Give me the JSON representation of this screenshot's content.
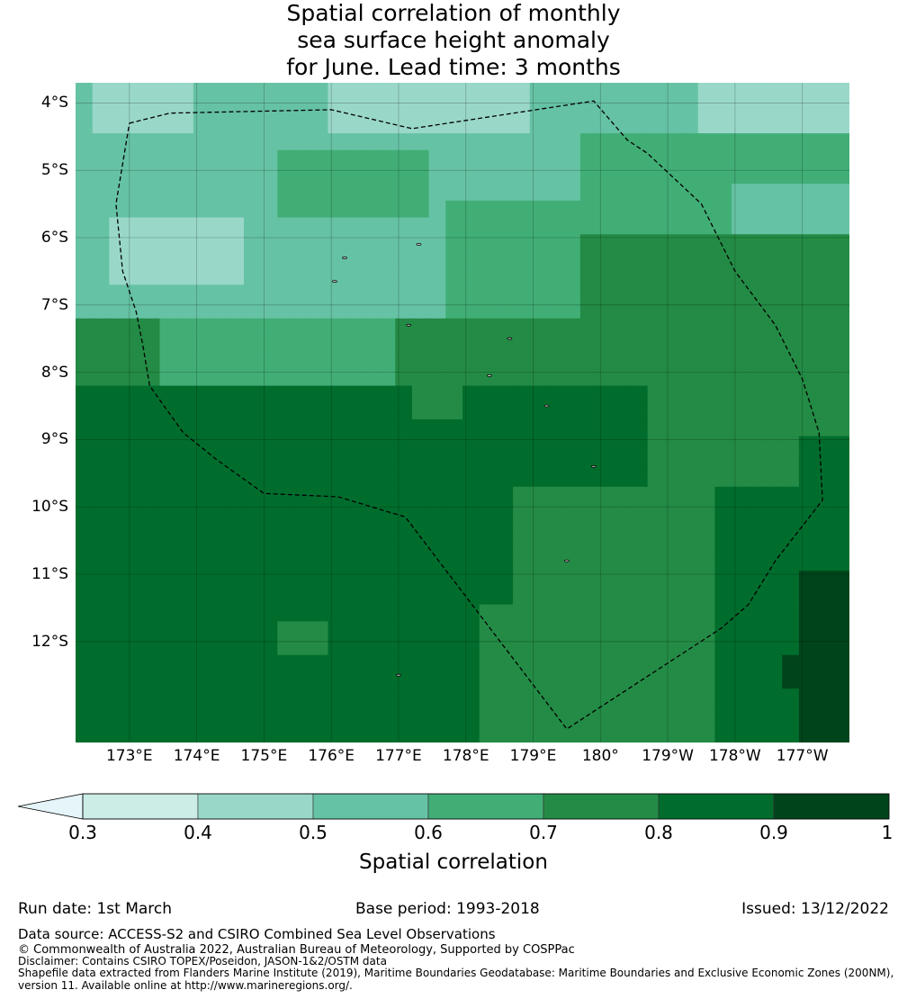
{
  "title": {
    "line1": "Spatial correlation of monthly",
    "line2": "sea surface height anomaly",
    "line3": "for June. Lead time: 3 months"
  },
  "map": {
    "lon_range": [
      172.2,
      183.7
    ],
    "lat_range": [
      -13.5,
      -3.7
    ],
    "lat_ticks": [
      {
        "value": -4,
        "label": "4°S"
      },
      {
        "value": -5,
        "label": "5°S"
      },
      {
        "value": -6,
        "label": "6°S"
      },
      {
        "value": -7,
        "label": "7°S"
      },
      {
        "value": -8,
        "label": "8°S"
      },
      {
        "value": -9,
        "label": "9°S"
      },
      {
        "value": -10,
        "label": "10°S"
      },
      {
        "value": -11,
        "label": "11°S"
      },
      {
        "value": -12,
        "label": "12°S"
      }
    ],
    "lon_ticks": [
      {
        "value": 173,
        "label": "173°E"
      },
      {
        "value": 174,
        "label": "174°E"
      },
      {
        "value": 175,
        "label": "175°E"
      },
      {
        "value": 176,
        "label": "176°E"
      },
      {
        "value": 177,
        "label": "177°E"
      },
      {
        "value": 178,
        "label": "178°E"
      },
      {
        "value": 179,
        "label": "179°E"
      },
      {
        "value": 180,
        "label": "180°"
      },
      {
        "value": 181,
        "label": "179°W"
      },
      {
        "value": 182,
        "label": "178°W"
      },
      {
        "value": 183,
        "label": "177°W"
      }
    ],
    "grid": true,
    "eez_boundary": [
      [
        173.0,
        -4.3
      ],
      [
        173.6,
        -4.15
      ],
      [
        176.0,
        -4.1
      ],
      [
        177.2,
        -4.38
      ],
      [
        179.9,
        -3.97
      ],
      [
        180.4,
        -4.55
      ],
      [
        180.7,
        -4.75
      ],
      [
        181.5,
        -5.5
      ],
      [
        182.0,
        -6.5
      ],
      [
        182.6,
        -7.3
      ],
      [
        183.0,
        -8.1
      ],
      [
        183.25,
        -8.9
      ],
      [
        183.3,
        -9.9
      ],
      [
        182.6,
        -10.8
      ],
      [
        182.2,
        -11.45
      ],
      [
        181.8,
        -11.8
      ],
      [
        179.5,
        -13.3
      ],
      [
        177.1,
        -10.15
      ],
      [
        176.1,
        -9.85
      ],
      [
        175.0,
        -9.8
      ],
      [
        174.3,
        -9.3
      ],
      [
        173.8,
        -8.9
      ],
      [
        173.3,
        -8.2
      ],
      [
        173.2,
        -7.6
      ],
      [
        173.1,
        -7.1
      ],
      [
        172.9,
        -6.5
      ],
      [
        172.8,
        -5.5
      ],
      [
        173.0,
        -4.3
      ]
    ],
    "correlation_bands_note": ""
  },
  "colorbar": {
    "label": "Spatial correlation",
    "ticks": [
      "0.3",
      "0.4",
      "0.5",
      "0.6",
      "0.7",
      "0.8",
      "0.9",
      "1"
    ],
    "bins": [
      {
        "min": 0.3,
        "max": 0.4,
        "color": "#ccece6"
      },
      {
        "min": 0.4,
        "max": 0.5,
        "color": "#99d8c9"
      },
      {
        "min": 0.5,
        "max": 0.6,
        "color": "#66c2a4"
      },
      {
        "min": 0.6,
        "max": 0.7,
        "color": "#41ae76"
      },
      {
        "min": 0.7,
        "max": 0.8,
        "color": "#238b45"
      },
      {
        "min": 0.8,
        "max": 0.9,
        "color": "#006d2c"
      },
      {
        "min": 0.9,
        "max": 1.0,
        "color": "#00441b"
      }
    ],
    "under_color": "#e5f5f9"
  },
  "footer": {
    "run_date": "Run date: 1st March",
    "base_period": "Base period: 1993-2018",
    "issued": "Issued: 13/12/2022",
    "data_source": "Data source: ACCESS-S2 and CSIRO Combined Sea Level Observations",
    "copyright": "© Commonwealth of Australia 2022, Australian Bureau of Meteorology, Supported by COSPPac",
    "disclaimer": "Disclaimer: Contains CSIRO TOPEX/Poseidon, JASON-1&2/OSTM data",
    "shapefile1": "Shapefile data extracted from Flanders Marine Institute (2019), Maritime Boundaries Geodatabase: Maritime Boundaries and Exclusive Economic Zones (200NM),",
    "shapefile2": "version 11. Available online at http://www.marineregions.org/."
  }
}
